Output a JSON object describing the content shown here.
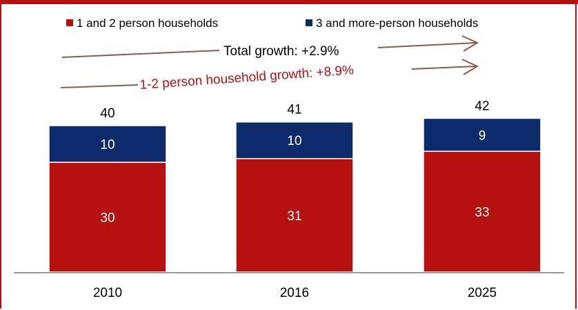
{
  "chart_data": {
    "type": "bar",
    "stacked": true,
    "categories": [
      "2010",
      "2016",
      "2025"
    ],
    "series": [
      {
        "name": "1 and 2 person households",
        "values": [
          30,
          31,
          33
        ],
        "color": "#b5120f"
      },
      {
        "name": "3 and more-person households",
        "values": [
          10,
          10,
          9
        ],
        "color": "#0d2a6b"
      }
    ],
    "totals": [
      40,
      41,
      42
    ],
    "ylim": [
      0,
      42
    ],
    "legend_position": "top",
    "grid": false,
    "annotations": [
      {
        "text": "Total growth: +2.9%",
        "color": "#000000"
      },
      {
        "text": "1-2 person household growth: +8.9%",
        "color": "#b5120f"
      }
    ]
  }
}
